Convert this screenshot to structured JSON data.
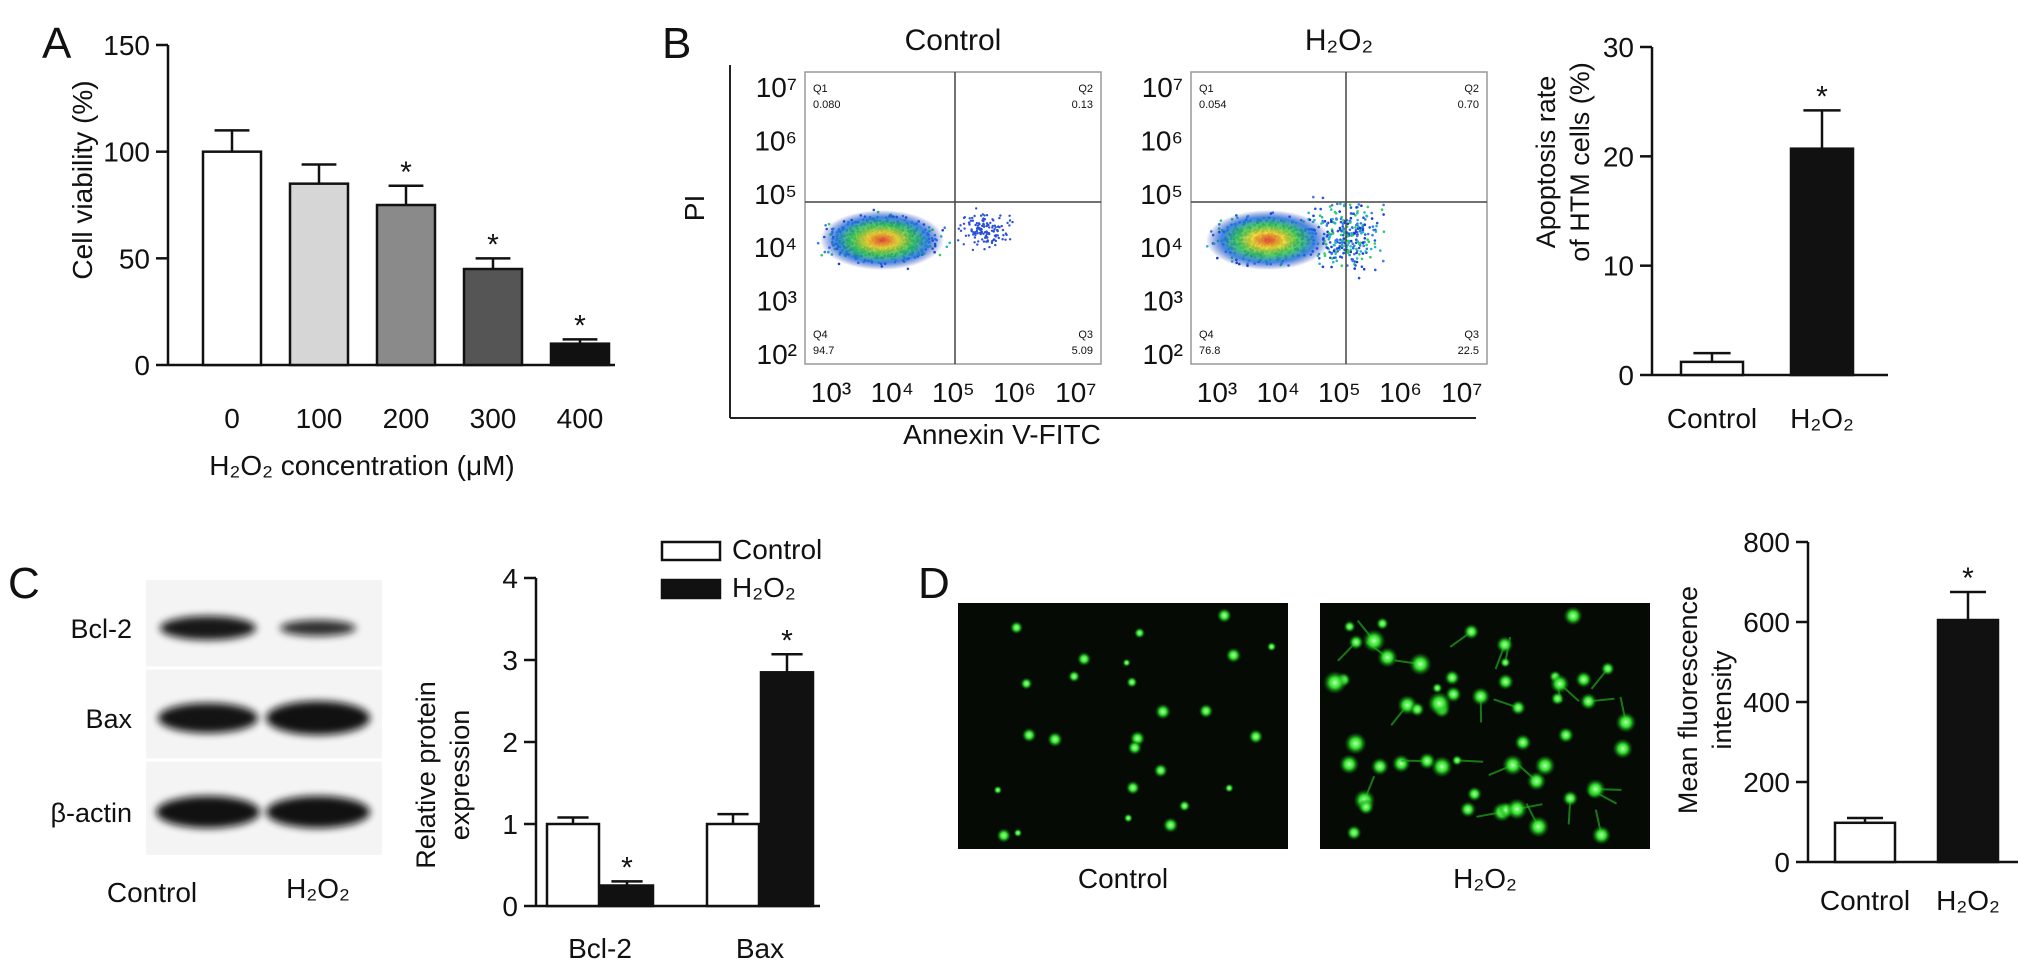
{
  "panels": {
    "A": "A",
    "B": "B",
    "C": "C",
    "D": "D"
  },
  "panel_a": {
    "chart_data": {
      "type": "bar",
      "categories": [
        "0",
        "100",
        "200",
        "300",
        "400"
      ],
      "values": [
        100,
        85,
        75,
        45,
        10
      ],
      "errors": [
        10,
        9,
        9,
        5,
        2
      ],
      "significant": [
        false,
        false,
        true,
        true,
        true
      ],
      "colors": [
        "#ffffff",
        "#d6d6d6",
        "#8a8a8a",
        "#555555",
        "#111111"
      ],
      "ylabel": "Cell viability (%)",
      "xlabel": "H₂O₂ concentration (μM)",
      "ylim": [
        0,
        150
      ],
      "yticks": [
        "0",
        "50",
        "100",
        "150"
      ]
    }
  },
  "panel_b_flow": {
    "xlabel": "Annexin V-FITC",
    "ylabel": "PI",
    "tick_labels": [
      "10³",
      "10⁴",
      "10⁵",
      "10⁶",
      "10⁷"
    ],
    "y_tick_labels": [
      "10²",
      "10³",
      "10⁴",
      "10⁵",
      "10⁶",
      "10⁷"
    ],
    "plots": [
      {
        "title": "Control",
        "q1": "Q1",
        "q1_val": "0.080",
        "q2": "Q2",
        "q2_val": "0.13",
        "q3": "Q3",
        "q3_val": "5.09",
        "q4": "Q4",
        "q4_val": "94.7"
      },
      {
        "title": "H₂O₂",
        "q1": "Q1",
        "q1_val": "0.054",
        "q2": "Q2",
        "q2_val": "0.70",
        "q3": "Q3",
        "q3_val": "22.5",
        "q4": "Q4",
        "q4_val": "76.8"
      }
    ]
  },
  "panel_b_bar": {
    "chart_data": {
      "type": "bar",
      "categories": [
        "Control",
        "H₂O₂"
      ],
      "values": [
        1.2,
        20.7
      ],
      "errors": [
        0.8,
        3.5
      ],
      "significant": [
        false,
        true
      ],
      "colors": [
        "#ffffff",
        "#111111"
      ],
      "ylabel_line1": "Apoptosis rate",
      "ylabel_line2": "of HTM cells (%)",
      "ylim": [
        0,
        30
      ],
      "yticks": [
        "0",
        "10",
        "20",
        "30"
      ]
    }
  },
  "panel_c_blot": {
    "rows": [
      "Bcl-2",
      "Bax",
      "β-actin"
    ],
    "lanes": [
      "Control",
      "H₂O₂"
    ]
  },
  "panel_c_bar": {
    "chart_data": {
      "type": "bar",
      "categories": [
        "Bcl-2",
        "Bax"
      ],
      "series": [
        {
          "name": "Control",
          "values": [
            1.0,
            1.0
          ],
          "errors": [
            0.08,
            0.12
          ],
          "color": "#ffffff"
        },
        {
          "name": "H₂O₂",
          "values": [
            0.25,
            2.85
          ],
          "errors": [
            0.05,
            0.22
          ],
          "color": "#111111"
        }
      ],
      "significant_h2o2": [
        true,
        true
      ],
      "ylabel_line1": "Relative protein",
      "ylabel_line2": "expression",
      "ylim": [
        0,
        4
      ],
      "yticks": [
        "0",
        "1",
        "2",
        "3",
        "4"
      ],
      "legend": "top-right"
    }
  },
  "panel_d_images": {
    "labels": [
      "Control",
      "H₂O₂"
    ]
  },
  "panel_d_bar": {
    "chart_data": {
      "type": "bar",
      "categories": [
        "Control",
        "H₂O₂"
      ],
      "values": [
        98,
        605
      ],
      "errors": [
        12,
        70
      ],
      "significant": [
        false,
        true
      ],
      "colors": [
        "#ffffff",
        "#111111"
      ],
      "ylabel_line1": "Mean fluorescence",
      "ylabel_line2": "intensity",
      "ylim": [
        0,
        800
      ],
      "yticks": [
        "0",
        "200",
        "400",
        "600",
        "800"
      ]
    }
  },
  "star": "*"
}
